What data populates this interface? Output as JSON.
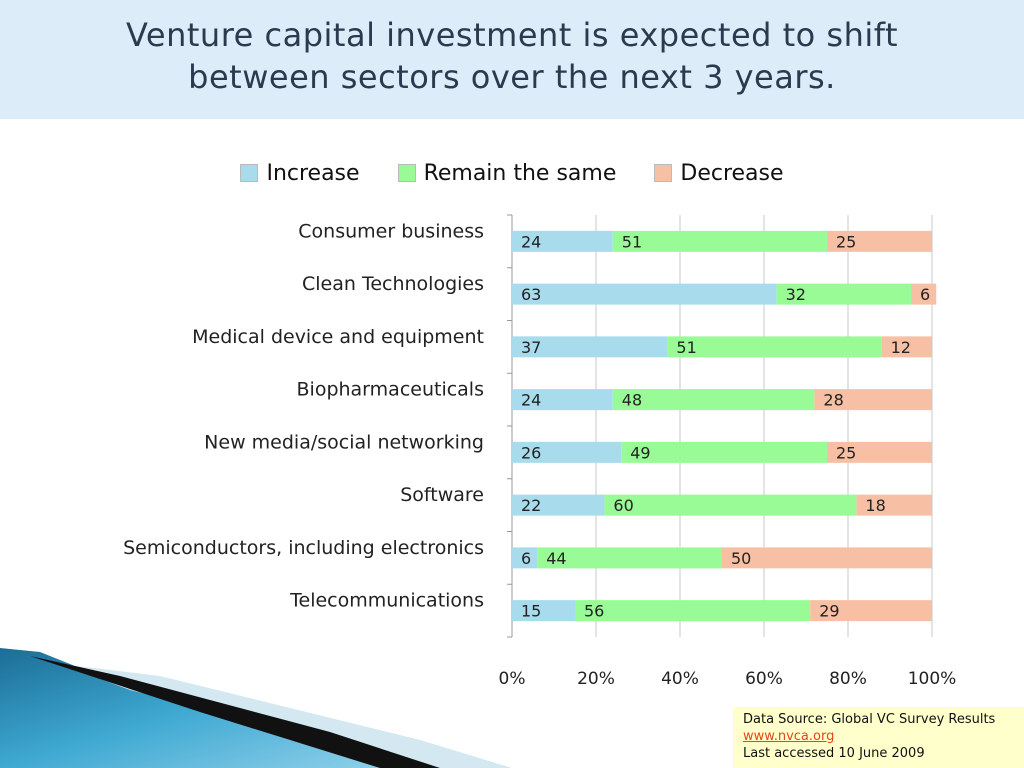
{
  "slide": {
    "title_line1": "Venture capital investment is expected to shift",
    "title_line2": "between sectors over the next 3 years."
  },
  "legend": [
    {
      "label": "Increase",
      "color": "#a8dcec"
    },
    {
      "label": "Remain the same",
      "color": "#99fb96"
    },
    {
      "label": "Decrease",
      "color": "#f7c0a4"
    }
  ],
  "source": {
    "line1": "Data Source:  Global VC Survey Results",
    "link": "www.nvca.org",
    "line3": "Last accessed 10 June 2009"
  },
  "chart_data": {
    "type": "bar",
    "orientation": "horizontal",
    "stacked": "percent",
    "categories": [
      "Consumer business",
      "Clean Technologies",
      "Medical device and equipment",
      "Biopharmaceuticals",
      "New media/social networking",
      "Software",
      "Semiconductors, including electronics",
      "Telecommunications"
    ],
    "series": [
      {
        "name": "Increase",
        "color": "#a8dcec",
        "values": [
          24,
          63,
          37,
          24,
          26,
          22,
          6,
          15
        ]
      },
      {
        "name": "Remain the same",
        "color": "#99fb96",
        "values": [
          51,
          32,
          51,
          48,
          49,
          60,
          44,
          56
        ]
      },
      {
        "name": "Decrease",
        "color": "#f7c0a4",
        "values": [
          25,
          6,
          12,
          28,
          25,
          18,
          50,
          29
        ]
      }
    ],
    "xticks": [
      "0%",
      "20%",
      "40%",
      "60%",
      "80%",
      "100%"
    ],
    "xlim": [
      0,
      100
    ],
    "grid": true,
    "legend_position": "top"
  }
}
